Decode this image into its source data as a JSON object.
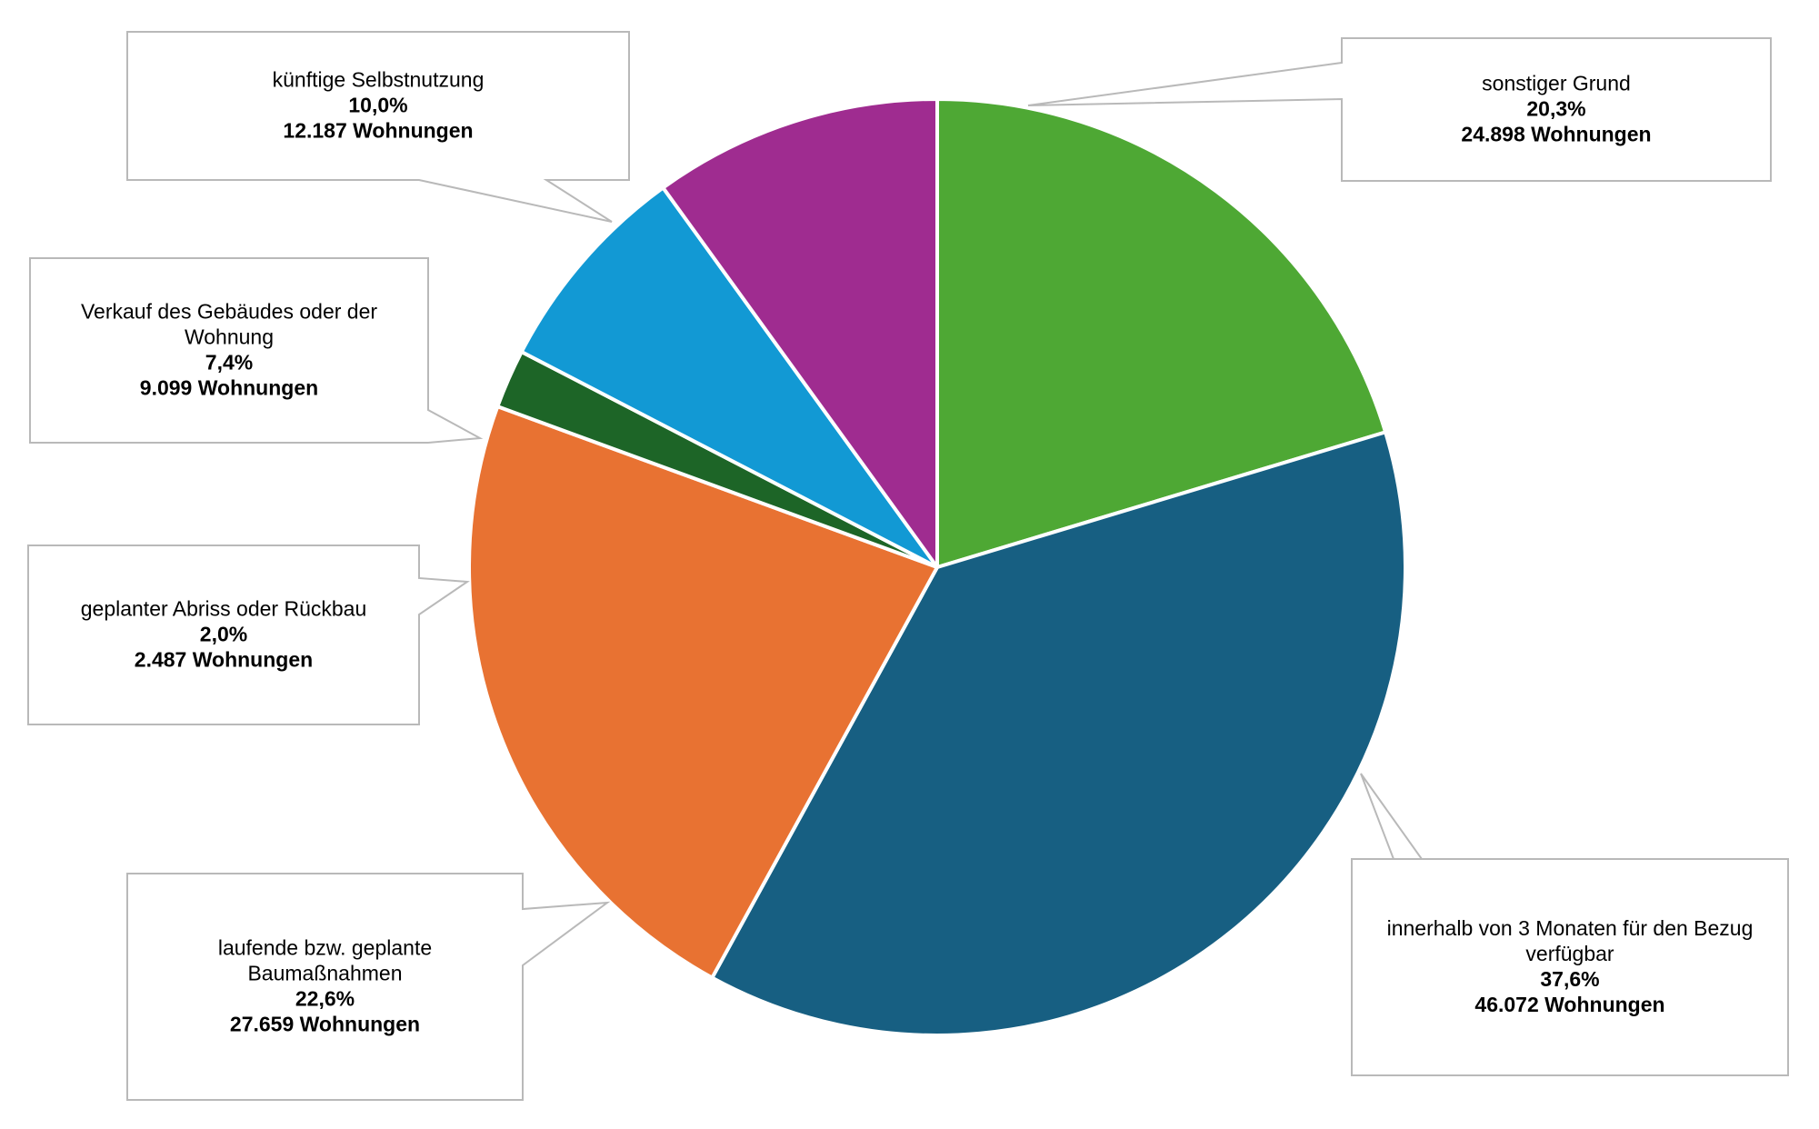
{
  "chart_data": {
    "type": "pie",
    "title": "",
    "start": "top-clockwise",
    "colors_by_order": [
      "#4ea834",
      "#175f82",
      "#e87232",
      "#1d6527",
      "#1299d4",
      "#9f2c90"
    ],
    "slices": [
      {
        "label": "sonstiger Grund",
        "label_lines": [
          "sonstiger Grund"
        ],
        "percent_text": "20,3%",
        "count_text": "24.898 Wohnungen",
        "value": 24898
      },
      {
        "label": "innerhalb von 3 Monaten für den Bezug verfügbar",
        "label_lines": [
          "innerhalb von 3 Monaten für den Bezug",
          "verfügbar"
        ],
        "percent_text": "37,6%",
        "count_text": "46.072 Wohnungen",
        "value": 46072
      },
      {
        "label": "laufende bzw. geplante Baumaßnahmen",
        "label_lines": [
          "laufende bzw. geplante",
          "Baumaßnahmen"
        ],
        "percent_text": "22,6%",
        "count_text": "27.659 Wohnungen",
        "value": 27659
      },
      {
        "label": "geplanter Abriss oder Rückbau",
        "label_lines": [
          "geplanter Abriss oder Rückbau"
        ],
        "percent_text": "2,0%",
        "count_text": "2.487 Wohnungen",
        "value": 2487
      },
      {
        "label": "Verkauf des Gebäudes oder der Wohnung",
        "label_lines": [
          "Verkauf des Gebäudes oder der",
          "Wohnung"
        ],
        "percent_text": "7,4%",
        "count_text": "9.099 Wohnungen",
        "value": 9099
      },
      {
        "label": "künftige Selbstnutzung",
        "label_lines": [
          "künftige Selbstnutzung"
        ],
        "percent_text": "10,0%",
        "count_text": "12.187 Wohnungen",
        "value": 12187
      }
    ],
    "legend": "none",
    "data_labels": "callouts"
  }
}
